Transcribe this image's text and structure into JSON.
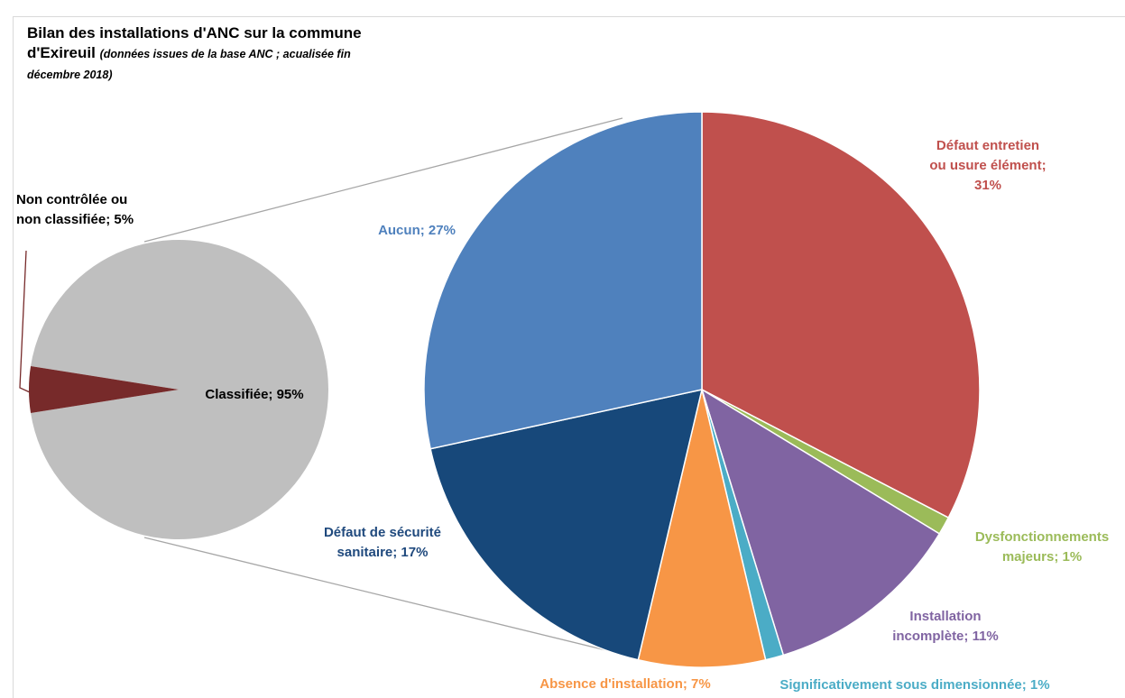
{
  "title": "Bilan des installations d'ANC sur la commune d'Exireuil",
  "subtitle": "(données issues de la base ANC ; acualisée fin décembre 2018)",
  "chart_data": {
    "type": "pie",
    "subtype": "pie-of-pie",
    "title": "Bilan des installations d'ANC sur la commune d'Exireuil",
    "subtitle": "(données issues de la base ANC ; acualisée fin décembre 2018)",
    "primary": {
      "slices": [
        {
          "label": "Classifiée; 95%",
          "name": "Classifiée",
          "value": 95,
          "color": "#bfbfbf"
        },
        {
          "label": "Non contrôlée ou non classifiée; 5%",
          "name": "Non contrôlée ou non classifiée",
          "value": 5,
          "color": "#772a2a"
        }
      ]
    },
    "secondary": {
      "slices": [
        {
          "label": "Défaut entretien ou usure élément; 31%",
          "name": "Défaut entretien ou usure élément",
          "value": 31,
          "color": "#c0504d",
          "label_color": "#c0504d"
        },
        {
          "label": "Dysfonctionnements majeurs; 1%",
          "name": "Dysfonctionnements majeurs",
          "value": 1,
          "color": "#9bbb59",
          "label_color": "#9bbb59"
        },
        {
          "label": "Installation incomplète; 11%",
          "name": "Installation incomplète",
          "value": 11,
          "color": "#8064a2",
          "label_color": "#8064a2"
        },
        {
          "label": "Significativement sous dimensionnée; 1%",
          "name": "Significativement sous dimensionnée",
          "value": 1,
          "color": "#4bacc6",
          "label_color": "#4bacc6"
        },
        {
          "label": "Absence d'installation; 7%",
          "name": "Absence d'installation",
          "value": 7,
          "color": "#f79646",
          "label_color": "#f79646"
        },
        {
          "label": "Défaut de sécurité sanitaire; 17%",
          "name": "Défaut de sécurité sanitaire",
          "value": 17,
          "color": "#17487a",
          "label_color": "#1f497d"
        },
        {
          "label": "Aucun; 27%",
          "name": "Aucun",
          "value": 27,
          "color": "#4f81bd",
          "label_color": "#4f81bd"
        }
      ]
    },
    "legend": "none"
  }
}
